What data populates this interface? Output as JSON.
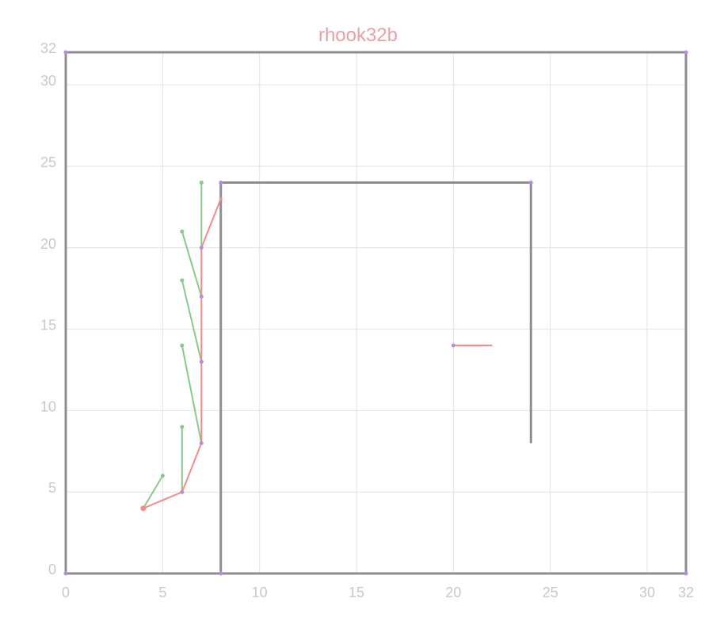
{
  "chart_data": {
    "type": "line",
    "title": "rhook32b",
    "xlabel": "",
    "ylabel": "",
    "xlim": [
      0,
      32
    ],
    "ylim": [
      0,
      32
    ],
    "grid": true,
    "x_ticks": [
      "0",
      "5",
      "10",
      "15",
      "20",
      "25",
      "30",
      "32"
    ],
    "y_ticks": [
      "0",
      "5",
      "10",
      "15",
      "20",
      "25",
      "30",
      "32"
    ],
    "colors": {
      "title": "#e8a0a4",
      "tick": "#c8c8c8",
      "grid": "#e2e2e2",
      "wall": "#8e8b92",
      "path": "#f08c8c",
      "branch": "#8cc88c",
      "node": "#b48cdc"
    },
    "walls": [
      {
        "points": [
          [
            0,
            32
          ],
          [
            32,
            32
          ]
        ]
      },
      {
        "points": [
          [
            0,
            0
          ],
          [
            32,
            0
          ]
        ]
      },
      {
        "points": [
          [
            0,
            0
          ],
          [
            0,
            32
          ]
        ]
      },
      {
        "points": [
          [
            32,
            0
          ],
          [
            32,
            32
          ]
        ]
      },
      {
        "points": [
          [
            8,
            0
          ],
          [
            8,
            24
          ],
          [
            24,
            24
          ],
          [
            24,
            8
          ]
        ]
      }
    ],
    "wall_nodes": [
      [
        0,
        32
      ],
      [
        32,
        32
      ],
      [
        0,
        0
      ],
      [
        32,
        0
      ],
      [
        8,
        0
      ],
      [
        8,
        24
      ],
      [
        24,
        24
      ]
    ],
    "path": [
      [
        4,
        4
      ],
      [
        6,
        5
      ],
      [
        7,
        8
      ],
      [
        7,
        13
      ],
      [
        7,
        17
      ],
      [
        7,
        20
      ],
      [
        8,
        23
      ]
    ],
    "path_nodes": [
      [
        6,
        5
      ],
      [
        7,
        8
      ],
      [
        7,
        13
      ],
      [
        7,
        17
      ],
      [
        7,
        20
      ]
    ],
    "start": [
      4,
      4
    ],
    "goal_segment": [
      [
        20,
        14
      ],
      [
        22,
        14
      ]
    ],
    "goal_node": [
      20,
      14
    ],
    "branches": [
      [
        [
          4,
          4
        ],
        [
          5,
          6
        ]
      ],
      [
        [
          6,
          5
        ],
        [
          6,
          9
        ]
      ],
      [
        [
          7,
          8
        ],
        [
          6,
          14
        ]
      ],
      [
        [
          7,
          13
        ],
        [
          6,
          18
        ]
      ],
      [
        [
          7,
          17
        ],
        [
          6,
          21
        ]
      ],
      [
        [
          7,
          20
        ],
        [
          7,
          24
        ]
      ]
    ],
    "branch_tips": [
      [
        5,
        6
      ],
      [
        6,
        9
      ],
      [
        6,
        14
      ],
      [
        6,
        18
      ],
      [
        6,
        21
      ],
      [
        7,
        24
      ]
    ]
  }
}
